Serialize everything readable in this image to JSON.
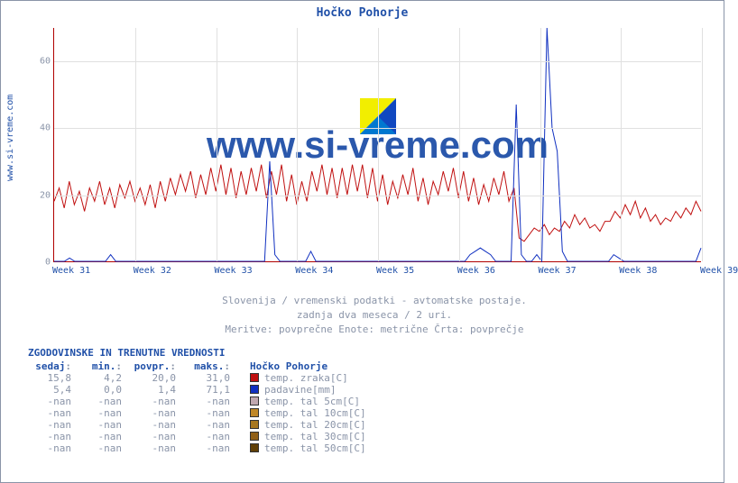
{
  "title": "Hočko Pohorje",
  "watermark": "www.si-vreme.com",
  "ylabel_link": "www.si-vreme.com",
  "subtitle_lines": [
    "Slovenija / vremenski podatki - avtomatske postaje.",
    "zadnja dva meseca / 2 uri.",
    "Meritve: povprečne  Enote: metrične  Črta: povprečje"
  ],
  "chart": {
    "type": "line",
    "background_color": "#ffffff",
    "grid_color": "#e0e0e0",
    "axis_color": "#b00000",
    "ylim": [
      0,
      70
    ],
    "yticks": [
      0,
      20,
      40,
      60
    ],
    "xticks": [
      "Week 31",
      "Week 32",
      "Week 33",
      "Week 34",
      "Week 35",
      "Week 36",
      "Week 37",
      "Week 38",
      "Week 39"
    ],
    "series": [
      {
        "name": "temp. zraka[C]",
        "color": "#c01010",
        "line_width": 1,
        "data": [
          18,
          22,
          16,
          24,
          17,
          21,
          15,
          22,
          18,
          24,
          17,
          22,
          16,
          23,
          19,
          24,
          18,
          22,
          17,
          23,
          16,
          24,
          18,
          25,
          20,
          26,
          21,
          27,
          19,
          26,
          20,
          28,
          21,
          29,
          20,
          28,
          19,
          27,
          20,
          28,
          21,
          29,
          19,
          27,
          20,
          29,
          18,
          26,
          17,
          24,
          18,
          27,
          21,
          29,
          20,
          28,
          19,
          28,
          20,
          29,
          21,
          29,
          19,
          28,
          18,
          26,
          17,
          24,
          19,
          26,
          20,
          28,
          18,
          25,
          17,
          24,
          20,
          27,
          21,
          28,
          19,
          27,
          18,
          25,
          17,
          23,
          18,
          25,
          20,
          27,
          18,
          22,
          7,
          6,
          8,
          10,
          9,
          11,
          8,
          10,
          9,
          12,
          10,
          14,
          11,
          13,
          10,
          11,
          9,
          12,
          12,
          15,
          13,
          17,
          14,
          18,
          13,
          16,
          12,
          14,
          11,
          13,
          12,
          15,
          13,
          16,
          14,
          18,
          15
        ]
      },
      {
        "name": "padavine[mm]",
        "color": "#1030c0",
        "line_width": 1,
        "data": [
          0,
          0,
          0,
          1,
          0,
          0,
          0,
          0,
          0,
          0,
          0,
          2,
          0,
          0,
          0,
          0,
          0,
          0,
          0,
          0,
          0,
          0,
          0,
          0,
          0,
          0,
          0,
          0,
          0,
          0,
          0,
          0,
          0,
          0,
          0,
          0,
          0,
          0,
          0,
          0,
          0,
          0,
          30,
          2,
          0,
          0,
          0,
          0,
          0,
          0,
          3,
          0,
          0,
          0,
          0,
          0,
          0,
          0,
          0,
          0,
          0,
          0,
          0,
          0,
          0,
          0,
          0,
          0,
          0,
          0,
          0,
          0,
          0,
          0,
          0,
          0,
          0,
          0,
          0,
          0,
          0,
          2,
          3,
          4,
          3,
          2,
          0,
          0,
          0,
          0,
          47,
          2,
          0,
          0,
          2,
          0,
          71,
          40,
          33,
          3,
          0,
          0,
          0,
          0,
          0,
          0,
          0,
          0,
          0,
          2,
          1,
          0,
          0,
          0,
          0,
          0,
          0,
          0,
          0,
          0,
          0,
          0,
          0,
          0,
          0,
          0,
          4
        ]
      }
    ]
  },
  "stats": {
    "heading": "ZGODOVINSKE IN TRENUTNE VREDNOSTI",
    "columns": [
      "sedaj",
      "min.",
      "povpr.",
      "maks."
    ],
    "legend_heading": "Hočko Pohorje",
    "rows": [
      {
        "values": [
          "15,8",
          "4,2",
          "20,0",
          "31,0"
        ],
        "color": "#c01010",
        "label": "temp. zraka[C]"
      },
      {
        "values": [
          "5,4",
          "0,0",
          "1,4",
          "71,1"
        ],
        "color": "#1030c0",
        "label": "padavine[mm]"
      },
      {
        "values": [
          "-nan",
          "-nan",
          "-nan",
          "-nan"
        ],
        "color": "#c0a8b0",
        "label": "temp. tal  5cm[C]"
      },
      {
        "values": [
          "-nan",
          "-nan",
          "-nan",
          "-nan"
        ],
        "color": "#c08828",
        "label": "temp. tal 10cm[C]"
      },
      {
        "values": [
          "-nan",
          "-nan",
          "-nan",
          "-nan"
        ],
        "color": "#a87820",
        "label": "temp. tal 20cm[C]"
      },
      {
        "values": [
          "-nan",
          "-nan",
          "-nan",
          "-nan"
        ],
        "color": "#906018",
        "label": "temp. tal 30cm[C]"
      },
      {
        "values": [
          "-nan",
          "-nan",
          "-nan",
          "-nan"
        ],
        "color": "#604008",
        "label": "temp. tal 50cm[C]"
      }
    ]
  },
  "colors": {
    "text_muted": "#8a94a8",
    "text_link": "#2050a8",
    "border": "#8a94a8"
  },
  "fontsizes": {
    "title": 13,
    "tick": 10,
    "body": 11,
    "watermark": 42
  }
}
